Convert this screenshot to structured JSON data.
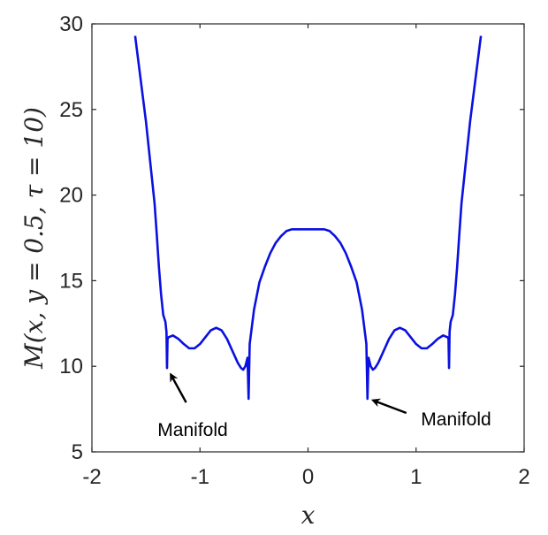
{
  "chart_data": {
    "type": "line",
    "title": "",
    "xlabel": "x",
    "ylabel": "M(x, y = 0.5, τ = 10)",
    "xlim": [
      -2,
      2
    ],
    "ylim": [
      5,
      30
    ],
    "xticks": [
      "-2",
      "-1",
      "0",
      "1",
      "2"
    ],
    "yticks": [
      "5",
      "10",
      "15",
      "20",
      "25",
      "30"
    ],
    "grid": false,
    "legend": "none",
    "line_color": "#0a10e0",
    "annotations": [
      {
        "text": "Manifold",
        "target": [
          -1.3,
          9.9
        ]
      },
      {
        "text": "Manifold",
        "target": [
          0.55,
          8.1
        ]
      }
    ],
    "series": [
      {
        "x": [
          -1.6,
          -1.55,
          -1.5,
          -1.45,
          -1.42,
          -1.4,
          -1.38,
          -1.36,
          -1.34,
          -1.32,
          -1.31,
          -1.305,
          -1.3,
          -1.29,
          -1.25,
          -1.2,
          -1.15,
          -1.1,
          -1.05,
          -1.0,
          -0.95,
          -0.9,
          -0.85,
          -0.8,
          -0.75,
          -0.7,
          -0.65,
          -0.62,
          -0.6,
          -0.58,
          -0.56,
          -0.55,
          -0.54,
          -0.52,
          -0.5,
          -0.45,
          -0.4,
          -0.35,
          -0.3,
          -0.25,
          -0.2,
          -0.15,
          -0.1,
          -0.05,
          0.0,
          0.05,
          0.1,
          0.15,
          0.2,
          0.25,
          0.3,
          0.35,
          0.4,
          0.45,
          0.5,
          0.52,
          0.54,
          0.55,
          0.56,
          0.58,
          0.6,
          0.62,
          0.65,
          0.7,
          0.75,
          0.8,
          0.85,
          0.9,
          0.95,
          1.0,
          1.05,
          1.1,
          1.15,
          1.2,
          1.25,
          1.29,
          1.3,
          1.305,
          1.31,
          1.32,
          1.34,
          1.36,
          1.38,
          1.4,
          1.42,
          1.45,
          1.5,
          1.55,
          1.6
        ],
        "y": [
          29.3,
          26.8,
          24.3,
          21.3,
          19.5,
          17.7,
          15.8,
          14.2,
          13.0,
          12.6,
          12.0,
          9.9,
          11.6,
          11.7,
          11.8,
          11.6,
          11.3,
          11.05,
          11.05,
          11.3,
          11.7,
          12.1,
          12.25,
          12.1,
          11.6,
          10.9,
          10.2,
          9.9,
          9.8,
          10.0,
          10.5,
          8.1,
          11.3,
          12.3,
          13.3,
          14.9,
          15.8,
          16.6,
          17.2,
          17.6,
          17.9,
          18.0,
          18.0,
          18.0,
          18.0,
          18.0,
          18.0,
          18.0,
          17.9,
          17.6,
          17.2,
          16.6,
          15.8,
          14.9,
          13.3,
          12.3,
          11.3,
          8.1,
          10.5,
          10.0,
          9.8,
          9.9,
          10.2,
          10.9,
          11.6,
          12.1,
          12.25,
          12.1,
          11.7,
          11.3,
          11.05,
          11.05,
          11.3,
          11.6,
          11.8,
          11.7,
          11.6,
          9.9,
          12.0,
          12.6,
          13.0,
          14.2,
          15.8,
          17.7,
          19.5,
          21.3,
          24.3,
          26.8,
          29.3
        ]
      }
    ]
  }
}
